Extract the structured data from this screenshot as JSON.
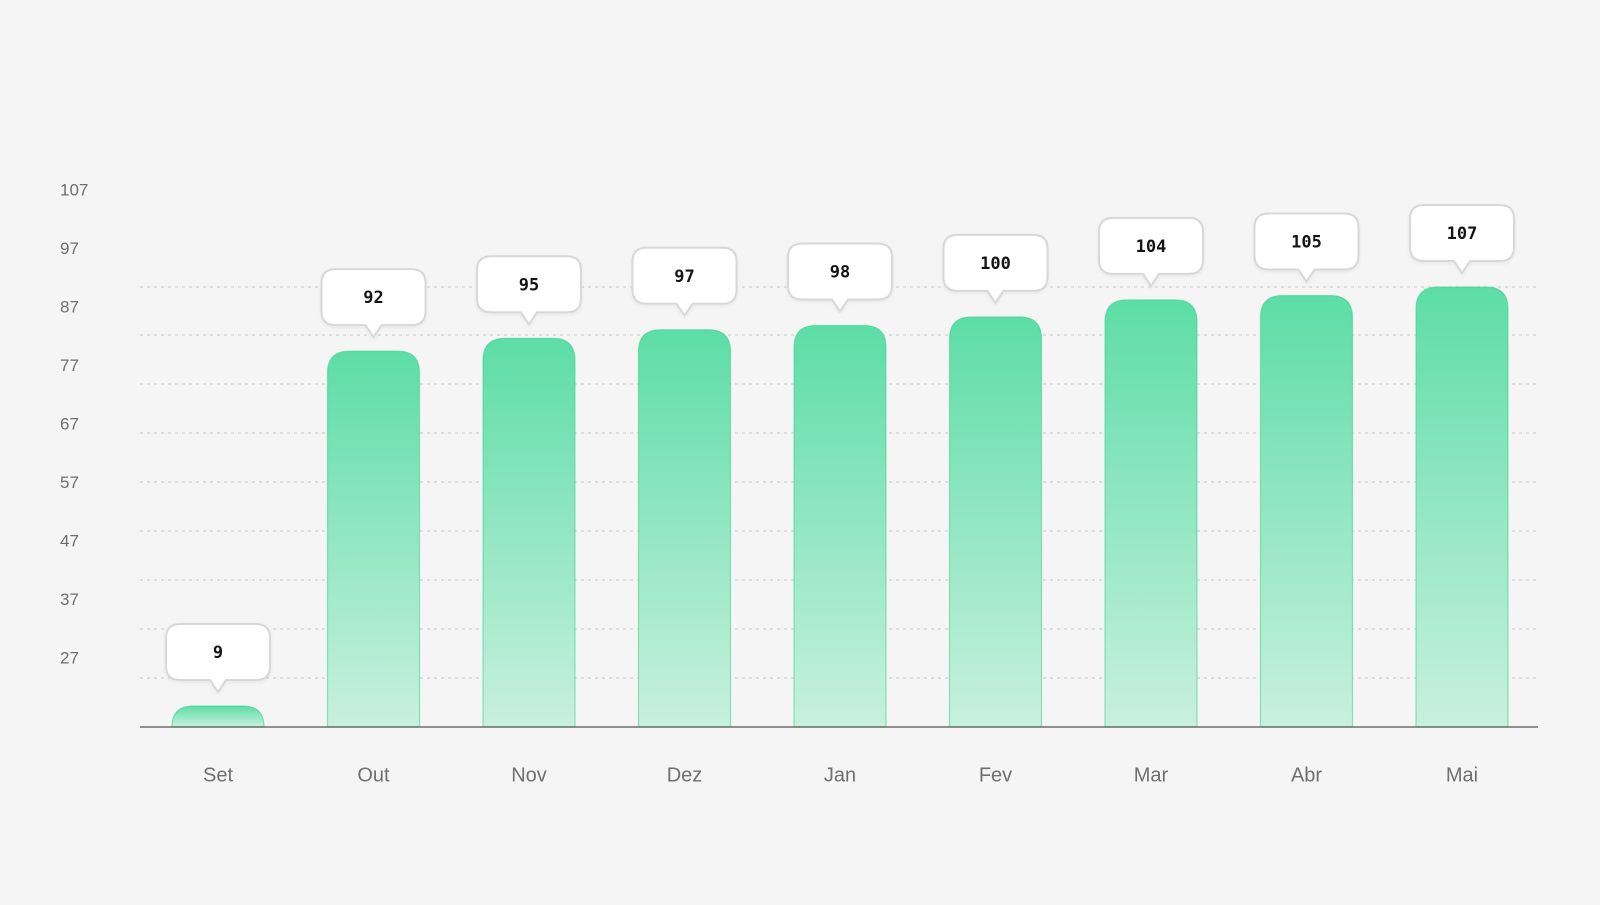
{
  "chart_data": {
    "type": "bar",
    "categories": [
      "Set",
      "Out",
      "Nov",
      "Dez",
      "Jan",
      "Fev",
      "Mar",
      "Abr",
      "Mai"
    ],
    "values": [
      9,
      92,
      95,
      97,
      98,
      100,
      104,
      105,
      107
    ],
    "data_labels": [
      "9",
      "92",
      "95",
      "97",
      "98",
      "100",
      "104",
      "105",
      "107"
    ],
    "y_ticks": [
      107,
      97,
      87,
      77,
      67,
      57,
      47,
      37,
      27
    ],
    "y_tick_labels": [
      "107",
      "97",
      "87",
      "77",
      "67",
      "57",
      "47",
      "37",
      "27"
    ],
    "bar_color_top": "#5ddda6",
    "bar_color_bottom": "#c8f0df",
    "bar_border": "#3ccf8e",
    "grid": true,
    "title": "",
    "xlabel": "",
    "ylabel": ""
  }
}
